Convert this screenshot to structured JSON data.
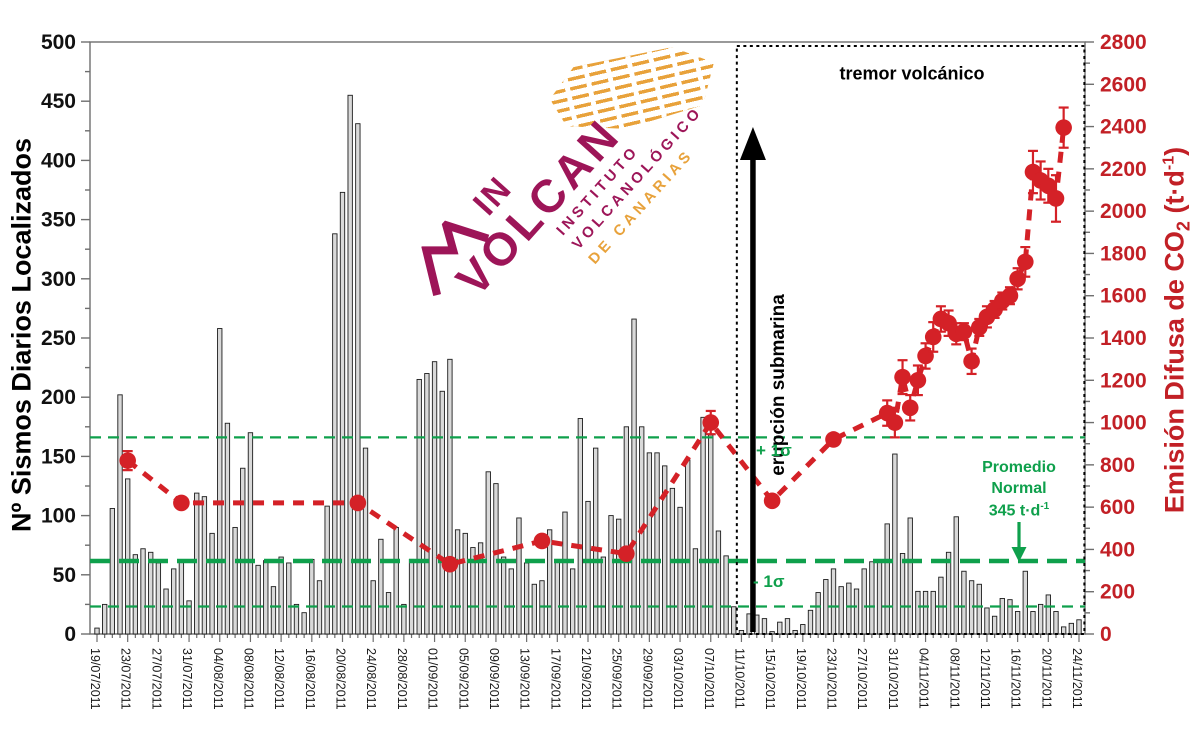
{
  "colors": {
    "series_red": "#D42127",
    "axis_red": "#C22026",
    "green": "#0FA04C",
    "bar_fill": "#D9D9D9",
    "bar_stroke": "#1C1C1C",
    "spine": "#6E6E6E",
    "maroon": "#9D1558",
    "orange": "#E8A23B"
  },
  "logo": {
    "in": "IN",
    "volcan": "VOLCAN",
    "sub1": "INSTITUTO",
    "sub2": "VOLCANOLÓGICO",
    "sub3": "DE CANARIAS"
  },
  "chart_data": {
    "type": "bar",
    "title": "",
    "left_axis": {
      "label": "Nº Sismos Diarios Localizados",
      "min": 0,
      "max": 500,
      "tick_step": 50,
      "minor_step": 25
    },
    "right_axis": {
      "label": "Emisión Difusa de CO₂ (t·d⁻¹)",
      "label_parts": {
        "pre": "Emisión Difusa de CO",
        "sub": "2",
        "mid": " (t·d",
        "sup": "-1",
        "post": ")"
      },
      "min": 0,
      "max": 2800,
      "tick_step": 200,
      "minor_step": 100
    },
    "x_axis": {
      "first_date": "19/07/2011",
      "last_date": "24/11/2011",
      "days_total": 129,
      "label_every_days": 4,
      "tick_labels": [
        "19/07/2011",
        "23/07/2011",
        "27/07/2011",
        "31/07/2011",
        "04/08/2011",
        "08/08/2011",
        "12/08/2011",
        "16/08/2011",
        "20/08/2011",
        "24/08/2011",
        "28/08/2011",
        "01/09/2011",
        "05/09/2011",
        "09/09/2011",
        "13/09/2011",
        "17/09/2011",
        "21/09/2011",
        "25/09/2011",
        "29/09/2011",
        "03/10/2011",
        "07/10/2011",
        "11/10/2011",
        "15/10/2011",
        "19/10/2011",
        "23/10/2011",
        "27/10/2011",
        "31/10/2011",
        "04/11/2011",
        "08/11/2011",
        "12/11/2011",
        "16/11/2011",
        "20/11/2011",
        "24/11/2011"
      ]
    },
    "series": [
      {
        "name": "sismos_diarios",
        "type": "bar",
        "axis": "left",
        "values": [
          5,
          25,
          106,
          202,
          131,
          67,
          72,
          69,
          60,
          38,
          55,
          62,
          28,
          119,
          116,
          85,
          258,
          178,
          90,
          140,
          170,
          58,
          62,
          40,
          65,
          60,
          25,
          18,
          63,
          45,
          108,
          338,
          373,
          455,
          431,
          157,
          45,
          80,
          35,
          90,
          25,
          63,
          215,
          220,
          230,
          205,
          232,
          88,
          85,
          73,
          77,
          137,
          127,
          65,
          55,
          98,
          60,
          42,
          45,
          88,
          63,
          103,
          55,
          182,
          112,
          157,
          65,
          100,
          97,
          175,
          266,
          175,
          153,
          153,
          142,
          123,
          107,
          147,
          72,
          183,
          168,
          87,
          66,
          23,
          3,
          17,
          16,
          13,
          2,
          10,
          13,
          3,
          8,
          20,
          35,
          46,
          55,
          40,
          43,
          38,
          55,
          61,
          61,
          93,
          152,
          68,
          98,
          36,
          36,
          36,
          48,
          69,
          99,
          53,
          45,
          42,
          22,
          15,
          30,
          29,
          19,
          53,
          19,
          25,
          33,
          19,
          6,
          9,
          12
        ]
      },
      {
        "name": "emision_co2",
        "type": "scatter_dashed_line",
        "axis": "right",
        "points": [
          {
            "day": 4,
            "value": 820,
            "err": 45
          },
          {
            "day": 11,
            "value": 620,
            "err": 0
          },
          {
            "day": 34,
            "value": 620,
            "err": 0
          },
          {
            "day": 46,
            "value": 330,
            "err": 0
          },
          {
            "day": 58,
            "value": 440,
            "err": 0
          },
          {
            "day": 69,
            "value": 380,
            "err": 0
          },
          {
            "day": 80,
            "value": 1000,
            "err": 55
          },
          {
            "day": 88,
            "value": 630,
            "err": 0
          },
          {
            "day": 96,
            "value": 920,
            "err": 0
          },
          {
            "day": 103,
            "value": 1045,
            "err": 60
          },
          {
            "day": 104,
            "value": 1000,
            "err": 70
          },
          {
            "day": 105,
            "value": 1215,
            "err": 80
          },
          {
            "day": 106,
            "value": 1070,
            "err": 60
          },
          {
            "day": 107,
            "value": 1200,
            "err": 70
          },
          {
            "day": 108,
            "value": 1315,
            "err": 60
          },
          {
            "day": 109,
            "value": 1405,
            "err": 70
          },
          {
            "day": 110,
            "value": 1490,
            "err": 60
          },
          {
            "day": 111,
            "value": 1470,
            "err": 60
          },
          {
            "day": 112,
            "value": 1420,
            "err": 50
          },
          {
            "day": 113,
            "value": 1430,
            "err": 40
          },
          {
            "day": 114,
            "value": 1290,
            "err": 60
          },
          {
            "day": 115,
            "value": 1450,
            "err": 40
          },
          {
            "day": 116,
            "value": 1500,
            "err": 50
          },
          {
            "day": 117,
            "value": 1535,
            "err": 40
          },
          {
            "day": 118,
            "value": 1575,
            "err": 40
          },
          {
            "day": 119,
            "value": 1600,
            "err": 40
          },
          {
            "day": 120,
            "value": 1680,
            "err": 50
          },
          {
            "day": 121,
            "value": 1760,
            "err": 70
          },
          {
            "day": 122,
            "value": 2185,
            "err": 100
          },
          {
            "day": 123,
            "value": 2145,
            "err": 90
          },
          {
            "day": 124,
            "value": 2120,
            "err": 80
          },
          {
            "day": 125,
            "value": 2060,
            "err": 110
          },
          {
            "day": 126,
            "value": 2395,
            "err": 95
          }
        ]
      }
    ],
    "reference_lines": [
      {
        "name": "plus_sigma",
        "axis": "right",
        "value": 930,
        "style": "thin_dashed_green"
      },
      {
        "name": "mean_normal",
        "axis": "right",
        "value": 345,
        "style": "thick_dashed_green"
      },
      {
        "name": "minus_sigma",
        "axis": "right",
        "value": 130,
        "style": "thin_dashed_green"
      }
    ],
    "annotations": {
      "tremor": "tremor volcánico",
      "tremor_box": {
        "start_day": 83.4,
        "end_day": 128.7
      },
      "eruption": "erupción submarina",
      "eruption_arrow_day": 85.5,
      "plus_sigma": "+ 1σ",
      "minus_sigma": "- 1σ",
      "promedio_line1": "Promedio",
      "promedio_line2": "Normal",
      "promedio_value": "345 t·d",
      "promedio_value_sup": "-1"
    },
    "legend_position": "none",
    "grid": false
  }
}
